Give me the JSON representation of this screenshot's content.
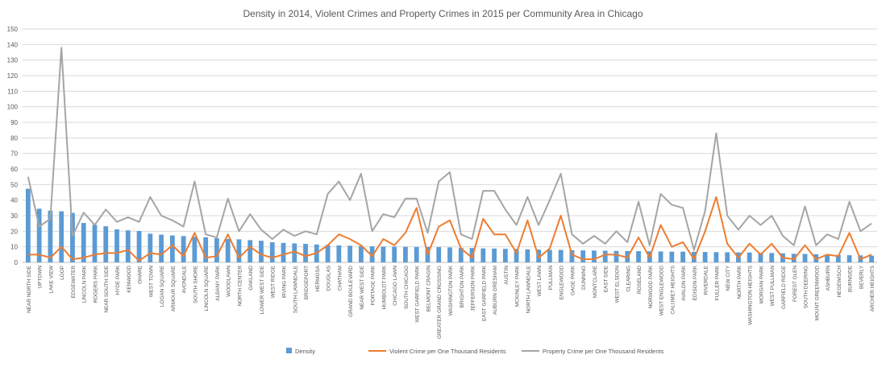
{
  "chart_data": {
    "type": "bar",
    "title": "Density in 2014, Violent Crimes and Property Crimes in 2015 per Community Area in Chicago",
    "xlabel": "",
    "ylabel": "",
    "ylim": [
      0,
      150
    ],
    "yticks": [
      0,
      10,
      20,
      30,
      40,
      50,
      60,
      70,
      80,
      90,
      100,
      110,
      120,
      130,
      140,
      150
    ],
    "grid": true,
    "legend_position": "bottom",
    "categories": [
      "NEAR NORTH SIDE",
      "UPTOWN",
      "LAKE VIEW",
      "LOOP",
      "EDGEWATER",
      "LINCOLN PARK",
      "ROGERS PARK",
      "NEAR SOUTH SIDE",
      "HYDE PARK",
      "KENWOOD",
      "OHARE",
      "WEST TOWN",
      "LOGAN SQUARE",
      "ARMOUR SQUARE",
      "AVONDALE",
      "SOUTH SHORE",
      "LINCOLN SQUARE",
      "ALBANY PARK",
      "WOODLAWN",
      "NORTH CENTER",
      "OAKLAND",
      "LOWER WEST SIDE",
      "WEST RIDGE",
      "IRVING PARK",
      "SOUTH LAWNDALE",
      "BRIDGEPORT",
      "HERMOSA",
      "DOUGLAS",
      "CHATHAM",
      "GRAND BOULEVARD",
      "NEAR WEST SIDE",
      "PORTAGE PARK",
      "HUMBOLDT PARK",
      "CHICAGO LAWN",
      "SOUTH CHICAGO",
      "WEST GARFIELD PARK",
      "BELMONT CRAGIN",
      "GREATER GRAND CROSSING",
      "WASHINGTON PARK",
      "BRIGHTON PARK",
      "JEFFERSON PARK",
      "EAST GARFIELD PARK",
      "AUBURN GRESHAM",
      "AUSTIN",
      "MCKINLEY PARK",
      "NORTH LAWNDALE",
      "WEST LAWN",
      "PULLMAN",
      "ENGLEWOOD",
      "GAGE PARK",
      "DUNNING",
      "MONTCLARE",
      "EAST SIDE",
      "WEST ELSDON",
      "CLEARING",
      "ROSELAND",
      "NORWOOD PARK",
      "WEST ENGLEWOOD",
      "CALUMET HEIGHTS",
      "AVALON PARK",
      "EDISON PARK",
      "RIVERDALE",
      "FULLER PARK",
      "NEW CITY",
      "NORTH PARK",
      "WASHINGTON HEIGHTS",
      "MORGAN PARK",
      "WEST PULLMAN",
      "GARFIELD RIDGE",
      "FOREST GLEN",
      "SOUTH DEERING",
      "MOUNT GREENWOOD",
      "ASHBURN",
      "HEGEWISCH",
      "BURNSIDE",
      "BEVERLY",
      "ARCHER HEIGHTS"
    ],
    "series": [
      {
        "name": "Density",
        "kind": "bar",
        "color": "#5B9BD5",
        "values": [
          47.3,
          34.5,
          33.2,
          32.8,
          31.8,
          25.3,
          24.1,
          23.2,
          21.2,
          20.6,
          20.2,
          18.4,
          17.8,
          17.3,
          16.9,
          16.5,
          16.1,
          15.5,
          15.1,
          14.8,
          14.3,
          13.9,
          12.9,
          12.5,
          12.2,
          11.9,
          11.5,
          11.2,
          10.9,
          10.7,
          10.5,
          10.3,
          10.1,
          10.1,
          10.0,
          9.9,
          9.9,
          9.8,
          9.6,
          9.4,
          9.2,
          9.0,
          8.9,
          8.7,
          8.6,
          8.4,
          8.2,
          8.1,
          8.0,
          7.8,
          7.7,
          7.6,
          7.5,
          7.4,
          7.3,
          7.2,
          7.1,
          7.0,
          6.9,
          6.9,
          6.8,
          6.7,
          6.6,
          6.5,
          6.4,
          6.3,
          6.1,
          6.0,
          5.8,
          5.5,
          5.4,
          5.2,
          5.0,
          4.8,
          4.6,
          4.5,
          4.3
        ]
      },
      {
        "name": "Violent Crime per One Thousand Residents",
        "kind": "line",
        "color": "#ED7D31",
        "values": [
          5,
          5,
          3,
          10,
          2,
          3,
          5,
          6,
          6,
          8,
          1,
          6,
          5,
          11,
          4,
          19,
          3,
          4,
          18,
          3,
          10,
          5,
          3,
          5,
          7,
          4,
          6,
          11,
          18,
          15,
          11,
          4,
          15,
          11,
          19,
          35,
          5,
          23,
          27,
          9,
          3,
          28,
          18,
          18,
          6,
          27,
          3,
          9,
          30,
          5,
          2,
          2,
          5,
          5,
          3,
          16,
          3,
          24,
          10,
          13,
          2,
          20,
          42,
          12,
          3,
          12,
          5,
          12,
          3,
          2,
          11,
          2,
          5,
          4,
          19,
          2,
          5
        ]
      },
      {
        "name": "Property Crime per One Thousand Residents",
        "kind": "line",
        "color": "#A5A5A5",
        "values": [
          55,
          23,
          28,
          138,
          17,
          32,
          24,
          34,
          26,
          29,
          26,
          42,
          30,
          27,
          23,
          52,
          18,
          16,
          41,
          20,
          31,
          21,
          15,
          21,
          17,
          20,
          18,
          44,
          52,
          40,
          57,
          20,
          31,
          29,
          41,
          41,
          19,
          52,
          58,
          18,
          15,
          46,
          46,
          34,
          24,
          42,
          24,
          40,
          57,
          18,
          12,
          17,
          12,
          20,
          13,
          39,
          11,
          44,
          37,
          35,
          8,
          33,
          83,
          30,
          21,
          30,
          24,
          30,
          17,
          11,
          36,
          11,
          18,
          15,
          39,
          20,
          25
        ]
      }
    ]
  }
}
